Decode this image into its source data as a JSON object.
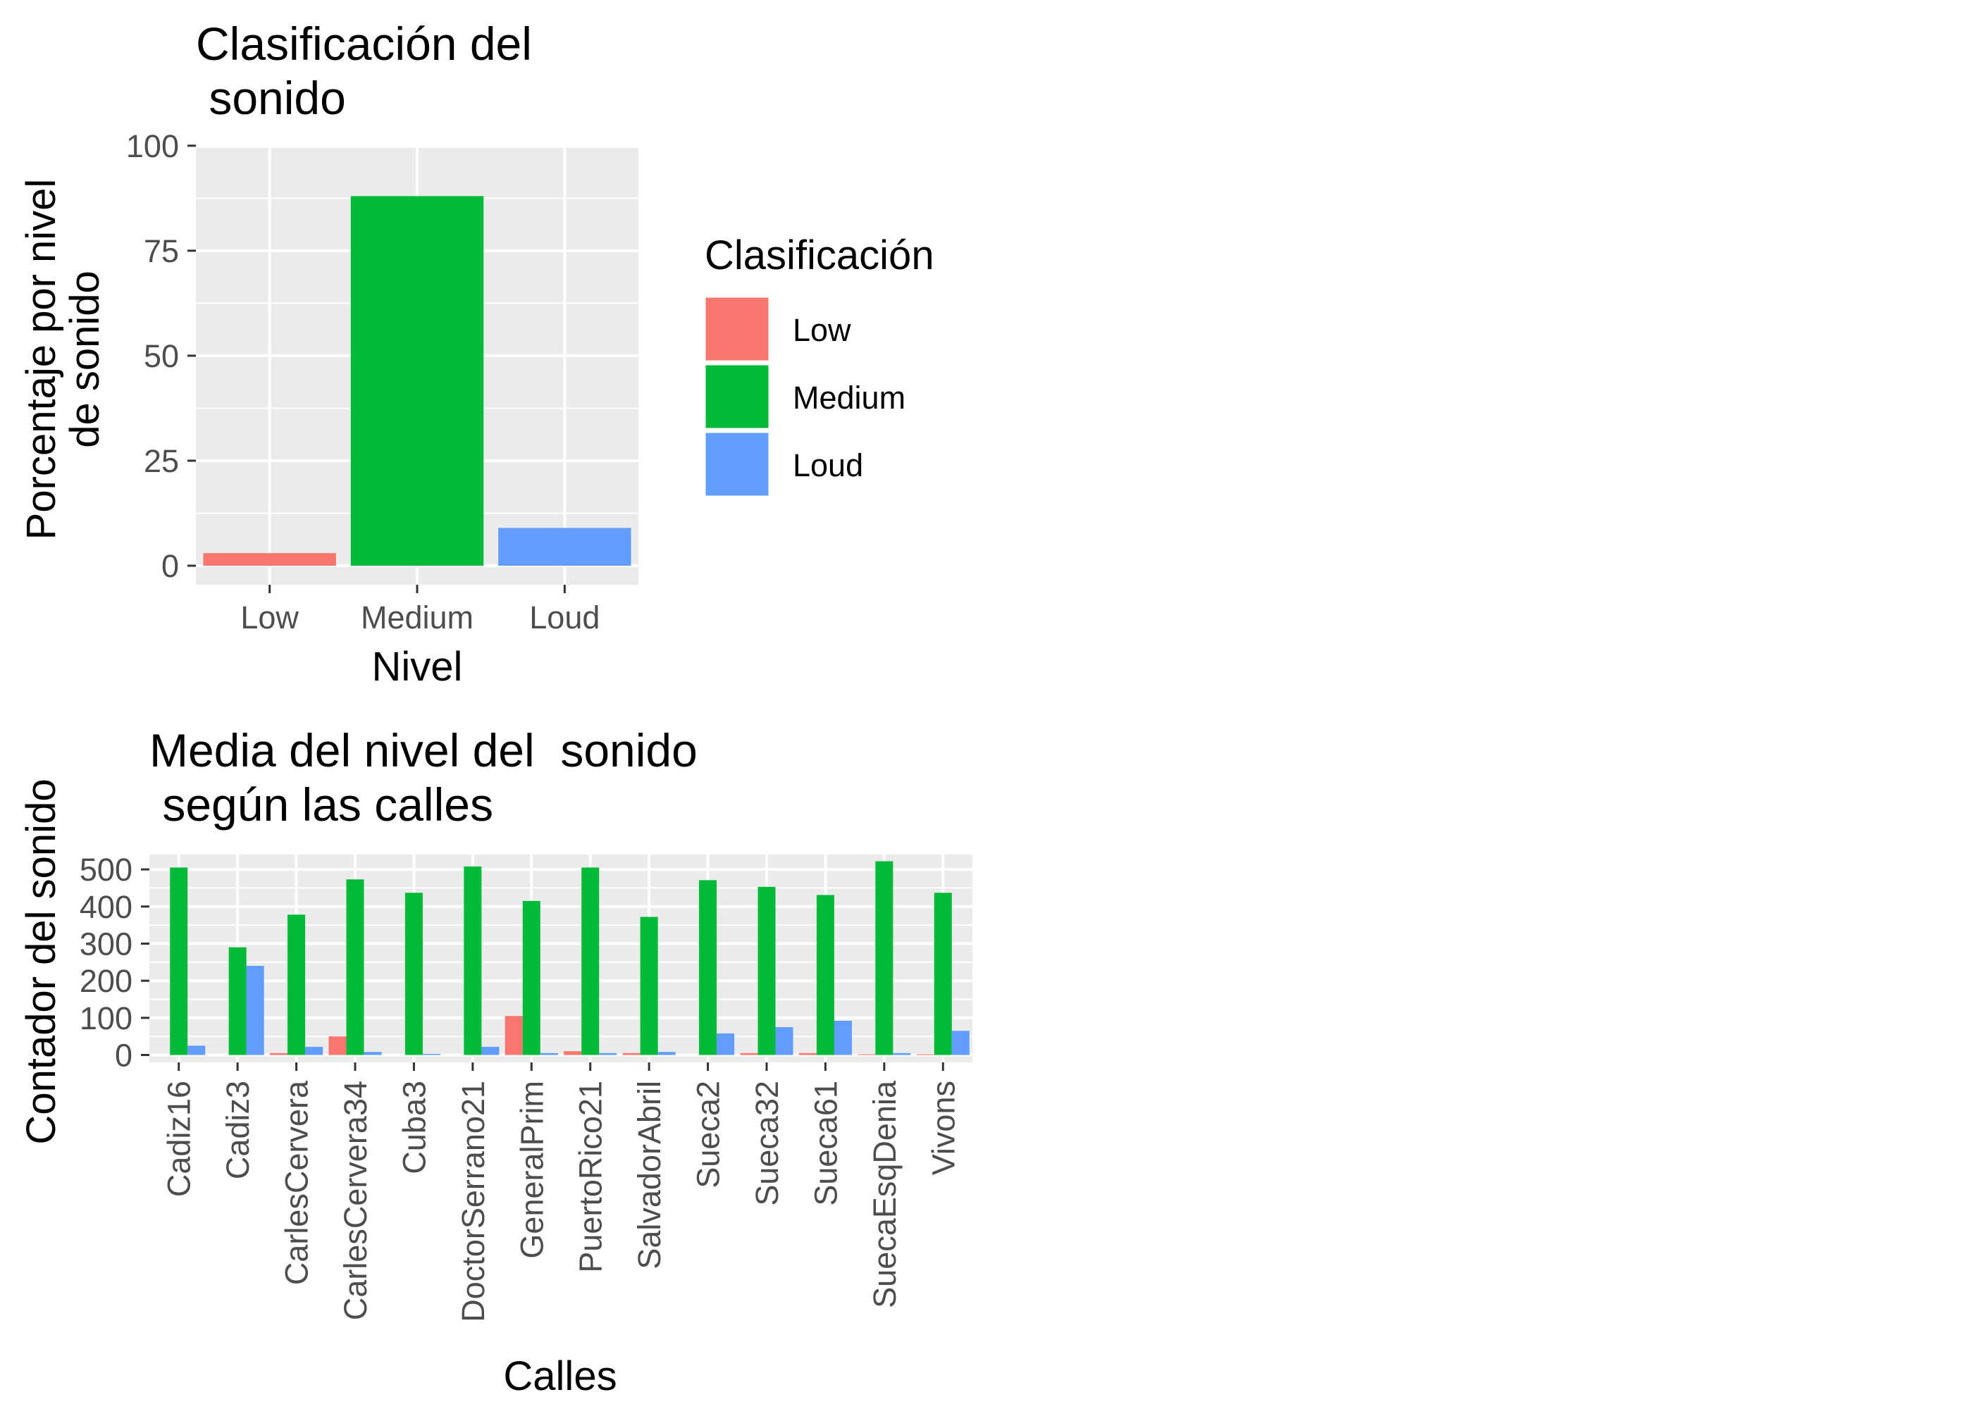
{
  "colors": {
    "low": "#F8766D",
    "medium": "#00BA38",
    "loud": "#619CFF",
    "panel": "#EBEBEB",
    "grid": "#FFFFFF"
  },
  "chart_data": [
    {
      "type": "bar",
      "title_lines": [
        "Clasificación del",
        " sonido"
      ],
      "xlabel": "Nivel",
      "ylabel_lines": [
        "Porcentaje por nivel",
        "de sonido"
      ],
      "categories": [
        "Low",
        "Medium",
        "Loud"
      ],
      "values": [
        3,
        88,
        9
      ],
      "ylim": [
        0,
        104
      ],
      "yticks": [
        0,
        25,
        50,
        75,
        100
      ],
      "grid": true,
      "legend": {
        "title": "Clasificación",
        "placement": "right",
        "entries": [
          "Low",
          "Medium",
          "Loud"
        ]
      }
    },
    {
      "type": "bar",
      "title_lines": [
        "Media del nivel del  sonido",
        " según las calles"
      ],
      "xlabel": "Calles",
      "ylabel": "Contador del sonido",
      "categories": [
        "Cadiz16",
        "Cadiz3",
        "CarlesCervera",
        "CarlesCervera34",
        "Cuba3",
        "DoctorSerrano21",
        "GeneralPrim",
        "PuertoRico21",
        "SalvadorAbril",
        "Sueca2",
        "Sueca32",
        "Sueca61",
        "SuecaEsqDenia",
        "Vivons"
      ],
      "series": [
        {
          "name": "Low",
          "values": [
            0,
            0,
            5,
            50,
            0,
            0,
            105,
            10,
            5,
            0,
            5,
            5,
            2,
            2
          ]
        },
        {
          "name": "Medium",
          "values": [
            505,
            290,
            378,
            473,
            437,
            508,
            415,
            505,
            372,
            471,
            453,
            431,
            522,
            437
          ]
        },
        {
          "name": "Loud",
          "values": [
            25,
            240,
            22,
            8,
            3,
            22,
            5,
            5,
            8,
            58,
            75,
            92,
            5,
            65
          ]
        }
      ],
      "ylim": [
        -20,
        540
      ],
      "yticks": [
        0,
        100,
        200,
        300,
        400,
        500
      ],
      "grid": true
    }
  ]
}
